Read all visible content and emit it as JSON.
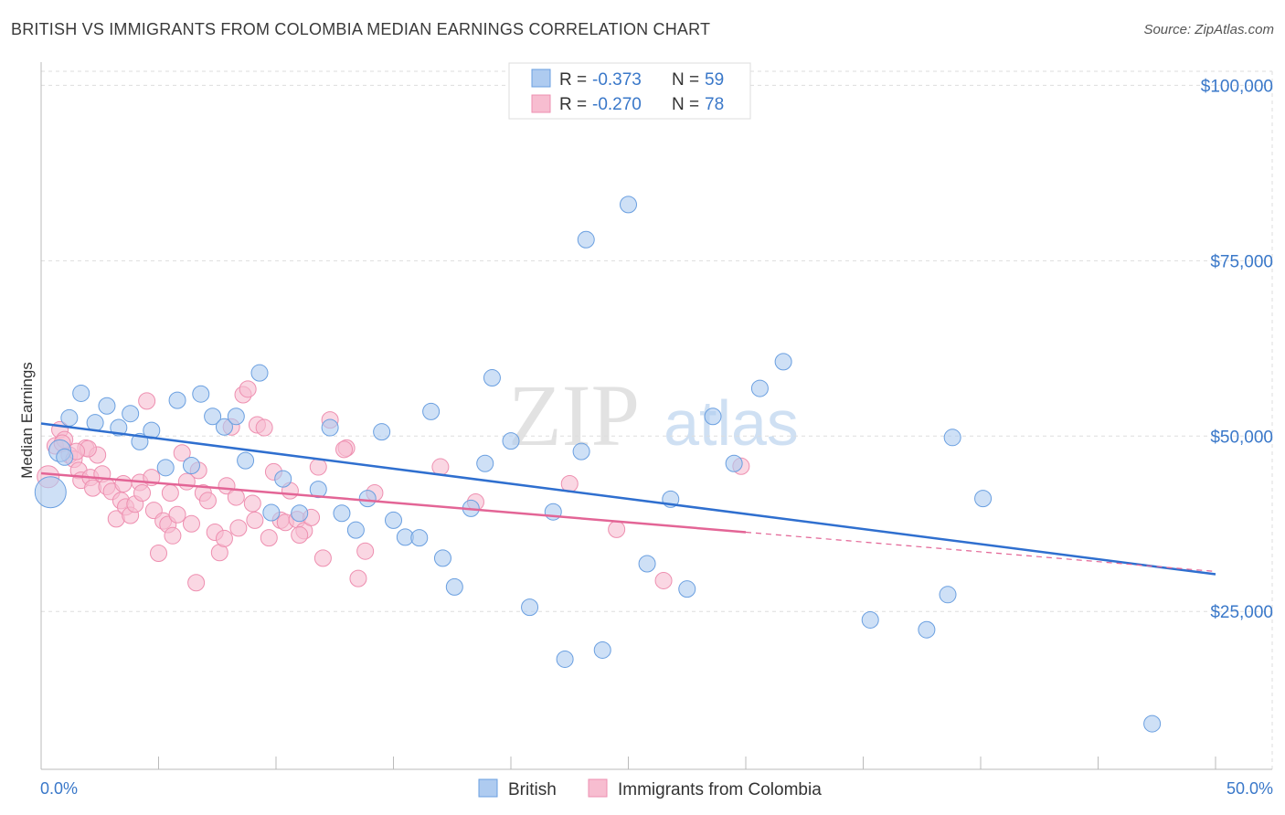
{
  "title": "BRITISH VS IMMIGRANTS FROM COLOMBIA MEDIAN EARNINGS CORRELATION CHART",
  "source": "Source: ZipAtlas.com",
  "watermark": {
    "zip": "ZIP",
    "atlas": "atlas"
  },
  "colors": {
    "british_fill": "#aecbf0",
    "british_stroke": "#6a9fe0",
    "british_line": "#2f6fcf",
    "colombia_fill": "#f7bdd0",
    "colombia_stroke": "#ee8fb0",
    "colombia_line": "#e36596",
    "tick_text": "#3a78c9",
    "grid": "#dddddd"
  },
  "legend": {
    "british": {
      "r_label": "R =",
      "r_value": "-0.373",
      "n_label": "N =",
      "n_value": "59"
    },
    "colombia": {
      "r_label": "R =",
      "r_value": "-0.270",
      "n_label": "N =",
      "n_value": "78"
    }
  },
  "bottom_legend": {
    "british": "British",
    "colombia": "Immigrants from Colombia"
  },
  "chart_data": {
    "type": "scatter",
    "title": "BRITISH VS IMMIGRANTS FROM COLOMBIA MEDIAN EARNINGS CORRELATION CHART",
    "xlabel": "",
    "ylabel": "Median Earnings",
    "xlim": [
      0,
      50
    ],
    "ylim": [
      2500,
      102000
    ],
    "x_tick_labels": [
      "0.0%",
      "50.0%"
    ],
    "y_ticks": [
      25000,
      50000,
      75000,
      100000
    ],
    "y_tick_labels": [
      "$25,000",
      "$50,000",
      "$75,000",
      "$100,000"
    ],
    "series": [
      {
        "name": "British",
        "r": -0.373,
        "n": 59,
        "trend": {
          "x0": 0,
          "y0": 51800,
          "x1": 50,
          "y1": 30300
        },
        "points": [
          [
            0.4,
            42000
          ],
          [
            0.8,
            47900
          ],
          [
            1.2,
            52600
          ],
          [
            1.7,
            56100
          ],
          [
            2.3,
            51900
          ],
          [
            2.8,
            54300
          ],
          [
            3.3,
            51200
          ],
          [
            3.8,
            53200
          ],
          [
            4.2,
            49200
          ],
          [
            4.7,
            50800
          ],
          [
            5.3,
            45500
          ],
          [
            5.8,
            55100
          ],
          [
            6.4,
            45800
          ],
          [
            6.8,
            56000
          ],
          [
            7.3,
            52800
          ],
          [
            7.8,
            51300
          ],
          [
            8.3,
            52800
          ],
          [
            8.7,
            46500
          ],
          [
            9.3,
            59000
          ],
          [
            9.8,
            39100
          ],
          [
            10.3,
            43900
          ],
          [
            11.0,
            39000
          ],
          [
            11.8,
            42400
          ],
          [
            12.3,
            51200
          ],
          [
            12.8,
            39000
          ],
          [
            13.4,
            36600
          ],
          [
            13.9,
            41100
          ],
          [
            14.5,
            50600
          ],
          [
            15.0,
            38000
          ],
          [
            15.5,
            35600
          ],
          [
            16.1,
            35500
          ],
          [
            16.6,
            53500
          ],
          [
            17.1,
            32600
          ],
          [
            17.6,
            28500
          ],
          [
            18.3,
            39700
          ],
          [
            18.9,
            46100
          ],
          [
            19.2,
            58300
          ],
          [
            20.0,
            49300
          ],
          [
            20.8,
            25600
          ],
          [
            21.8,
            39200
          ],
          [
            22.3,
            18200
          ],
          [
            23.0,
            47800
          ],
          [
            23.2,
            78000
          ],
          [
            23.9,
            19500
          ],
          [
            25.0,
            83000
          ],
          [
            25.8,
            31800
          ],
          [
            26.8,
            41000
          ],
          [
            27.5,
            28200
          ],
          [
            28.6,
            52800
          ],
          [
            29.5,
            46100
          ],
          [
            30.6,
            56800
          ],
          [
            31.6,
            60600
          ],
          [
            35.3,
            23800
          ],
          [
            37.7,
            22400
          ],
          [
            38.6,
            27400
          ],
          [
            38.8,
            49800
          ],
          [
            40.1,
            41100
          ],
          [
            47.3,
            9000
          ],
          [
            1.0,
            47000
          ]
        ]
      },
      {
        "name": "Immigrants from Colombia",
        "r": -0.27,
        "n": 78,
        "trend": {
          "x0": 0,
          "y0": 44700,
          "x1": 30,
          "y1": 36300
        },
        "trend_dashed": {
          "x0": 30,
          "y0": 36300,
          "x1": 50,
          "y1": 30700
        },
        "points": [
          [
            0.3,
            44200
          ],
          [
            0.6,
            48600
          ],
          [
            0.8,
            50900
          ],
          [
            1.0,
            49500
          ],
          [
            1.2,
            47300
          ],
          [
            1.4,
            46700
          ],
          [
            1.6,
            45100
          ],
          [
            1.7,
            43700
          ],
          [
            1.9,
            48300
          ],
          [
            2.1,
            44100
          ],
          [
            2.2,
            42600
          ],
          [
            2.4,
            47300
          ],
          [
            2.6,
            44600
          ],
          [
            2.8,
            42800
          ],
          [
            3.0,
            42100
          ],
          [
            3.2,
            38200
          ],
          [
            3.4,
            40800
          ],
          [
            3.6,
            39900
          ],
          [
            3.8,
            38700
          ],
          [
            4.0,
            40300
          ],
          [
            4.2,
            43400
          ],
          [
            4.3,
            41900
          ],
          [
            4.5,
            55000
          ],
          [
            4.7,
            44100
          ],
          [
            4.8,
            39400
          ],
          [
            5.0,
            33300
          ],
          [
            5.2,
            37900
          ],
          [
            5.4,
            37400
          ],
          [
            5.5,
            41900
          ],
          [
            5.6,
            35800
          ],
          [
            5.8,
            38800
          ],
          [
            6.0,
            47600
          ],
          [
            6.2,
            43500
          ],
          [
            6.4,
            37500
          ],
          [
            6.6,
            29100
          ],
          [
            6.7,
            45100
          ],
          [
            6.9,
            41900
          ],
          [
            7.1,
            40800
          ],
          [
            7.4,
            36300
          ],
          [
            7.6,
            33400
          ],
          [
            7.8,
            35400
          ],
          [
            7.9,
            42900
          ],
          [
            8.1,
            51300
          ],
          [
            8.3,
            41300
          ],
          [
            8.4,
            36900
          ],
          [
            8.6,
            55900
          ],
          [
            8.8,
            56700
          ],
          [
            9.0,
            40400
          ],
          [
            9.2,
            51600
          ],
          [
            9.5,
            51200
          ],
          [
            9.7,
            35500
          ],
          [
            9.9,
            44900
          ],
          [
            10.2,
            38000
          ],
          [
            10.4,
            37700
          ],
          [
            10.6,
            42200
          ],
          [
            10.9,
            38100
          ],
          [
            11.2,
            36500
          ],
          [
            11.5,
            38400
          ],
          [
            11.8,
            45600
          ],
          [
            12.0,
            32600
          ],
          [
            12.3,
            52300
          ],
          [
            13.0,
            48300
          ],
          [
            13.5,
            29700
          ],
          [
            13.8,
            33600
          ],
          [
            14.2,
            41900
          ],
          [
            17.0,
            45600
          ],
          [
            18.5,
            40600
          ],
          [
            22.5,
            43200
          ],
          [
            24.5,
            36700
          ],
          [
            26.5,
            29400
          ],
          [
            29.8,
            45700
          ],
          [
            2.0,
            48200
          ],
          [
            0.9,
            49000
          ],
          [
            1.5,
            47800
          ],
          [
            3.5,
            43200
          ],
          [
            9.1,
            38000
          ],
          [
            11.0,
            35900
          ],
          [
            12.9,
            48100
          ]
        ]
      }
    ]
  }
}
